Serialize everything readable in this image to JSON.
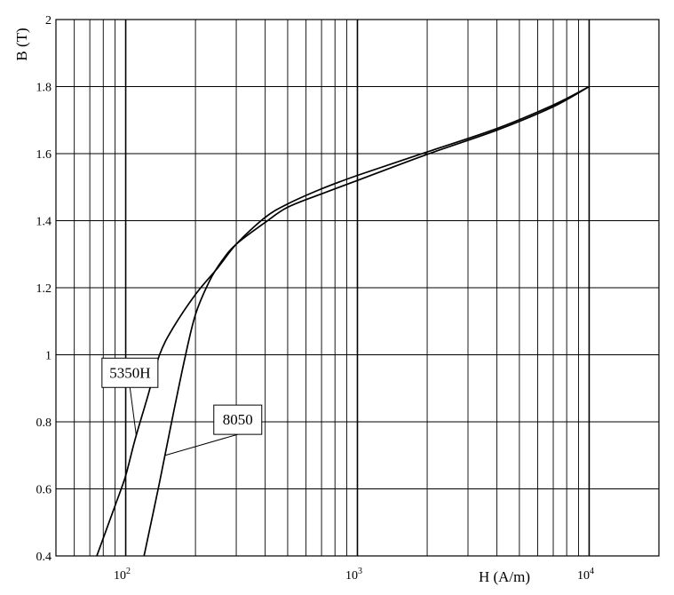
{
  "chart_data": {
    "type": "line",
    "title": "",
    "xlabel": "H (A/m)",
    "ylabel": "B (T)",
    "x_scale": "log",
    "xlim": [
      50,
      20000
    ],
    "ylim": [
      0.4,
      2.0
    ],
    "grid": true,
    "x_ticks": [
      {
        "value": 100,
        "base": "10",
        "exp": "2"
      },
      {
        "value": 1000,
        "base": "10",
        "exp": "3"
      },
      {
        "value": 10000,
        "base": "10",
        "exp": "4"
      }
    ],
    "y_ticks": [
      {
        "value": 0.4,
        "label": "0.4"
      },
      {
        "value": 0.6,
        "label": "0.6"
      },
      {
        "value": 0.8,
        "label": "0.8"
      },
      {
        "value": 1.0,
        "label": "1"
      },
      {
        "value": 1.2,
        "label": "1.2"
      },
      {
        "value": 1.4,
        "label": "1.4"
      },
      {
        "value": 1.6,
        "label": "1.6"
      },
      {
        "value": 1.8,
        "label": "1.8"
      },
      {
        "value": 2.0,
        "label": "2"
      }
    ],
    "series": [
      {
        "name": "5350H",
        "x": [
          75,
          90,
          100,
          110,
          125,
          140,
          160,
          200,
          250,
          300,
          400,
          500,
          700,
          1000,
          2000,
          4000,
          7000,
          10000
        ],
        "y": [
          0.4,
          0.55,
          0.64,
          0.75,
          0.88,
          1.0,
          1.08,
          1.18,
          1.26,
          1.33,
          1.41,
          1.45,
          1.495,
          1.535,
          1.605,
          1.675,
          1.745,
          1.8
        ]
      },
      {
        "name": "8050",
        "x": [
          120,
          140,
          160,
          180,
          200,
          230,
          260,
          300,
          400,
          500,
          700,
          1000,
          2000,
          4000,
          7000,
          10000
        ],
        "y": [
          0.4,
          0.62,
          0.82,
          0.99,
          1.12,
          1.22,
          1.28,
          1.33,
          1.395,
          1.44,
          1.48,
          1.52,
          1.598,
          1.67,
          1.74,
          1.8
        ]
      }
    ],
    "annotations": [
      {
        "text": "5350H",
        "series": "5350H",
        "box_at": {
          "x": 79,
          "y": 0.99
        },
        "points_to": {
          "x": 111,
          "y": 0.76
        }
      },
      {
        "text": "8050",
        "series": "8050",
        "box_at": {
          "x": 240,
          "y": 0.85
        },
        "points_to": {
          "x": 148,
          "y": 0.7
        }
      }
    ]
  }
}
